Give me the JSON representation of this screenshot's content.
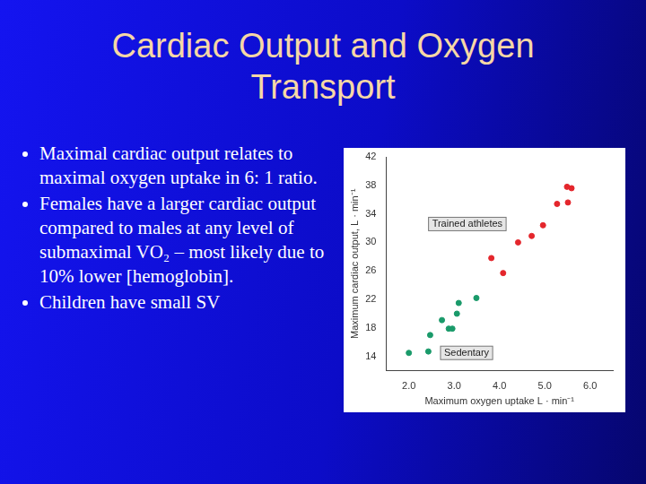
{
  "title": "Cardiac Output and Oxygen Transport",
  "bullets": [
    "Maximal cardiac output relates to maximal oxygen uptake in 6: 1 ratio.",
    "Females have a larger cardiac output compared to males at any level of submaximal VO₂ – most likely due to 10% lower [hemoglobin].",
    "Children have small SV"
  ],
  "chart_data": {
    "type": "scatter",
    "xlabel": "Maximum oxygen uptake L · min⁻¹",
    "ylabel": "Maximum cardiac output, L · min⁻¹",
    "series": [
      {
        "name": "Trained athletes",
        "color": "#e4262c",
        "marker": "circle",
        "x": [
          3.82,
          4.08,
          4.41,
          4.71,
          4.96,
          5.27,
          5.51,
          5.49,
          5.59
        ],
        "values": [
          27.8,
          25.7,
          30,
          30.9,
          32.4,
          35.4,
          35.6,
          37.8,
          37.6
        ]
      },
      {
        "name": "Sedentary",
        "color": "#1a9a6a",
        "marker": "circle",
        "x": [
          2.0,
          2.47,
          2.43,
          2.73,
          2.88,
          2.96,
          3.06,
          3.1,
          3.49
        ],
        "values": [
          14.5,
          17,
          14.7,
          19.1,
          17.9,
          17.9,
          20,
          21.5,
          22.2
        ]
      }
    ],
    "xlim": [
      1.5,
      6.5
    ],
    "xticks": [
      {
        "value": 2,
        "label": "2.0"
      },
      {
        "value": 3,
        "label": "3.0"
      },
      {
        "value": 4,
        "label": "4.0"
      },
      {
        "value": 5,
        "label": "5.0"
      },
      {
        "value": 6,
        "label": "6.0"
      }
    ],
    "ylim": [
      12,
      42
    ],
    "yticks": [
      14,
      18,
      22,
      26,
      30,
      34,
      38,
      42
    ],
    "grid": false
  }
}
